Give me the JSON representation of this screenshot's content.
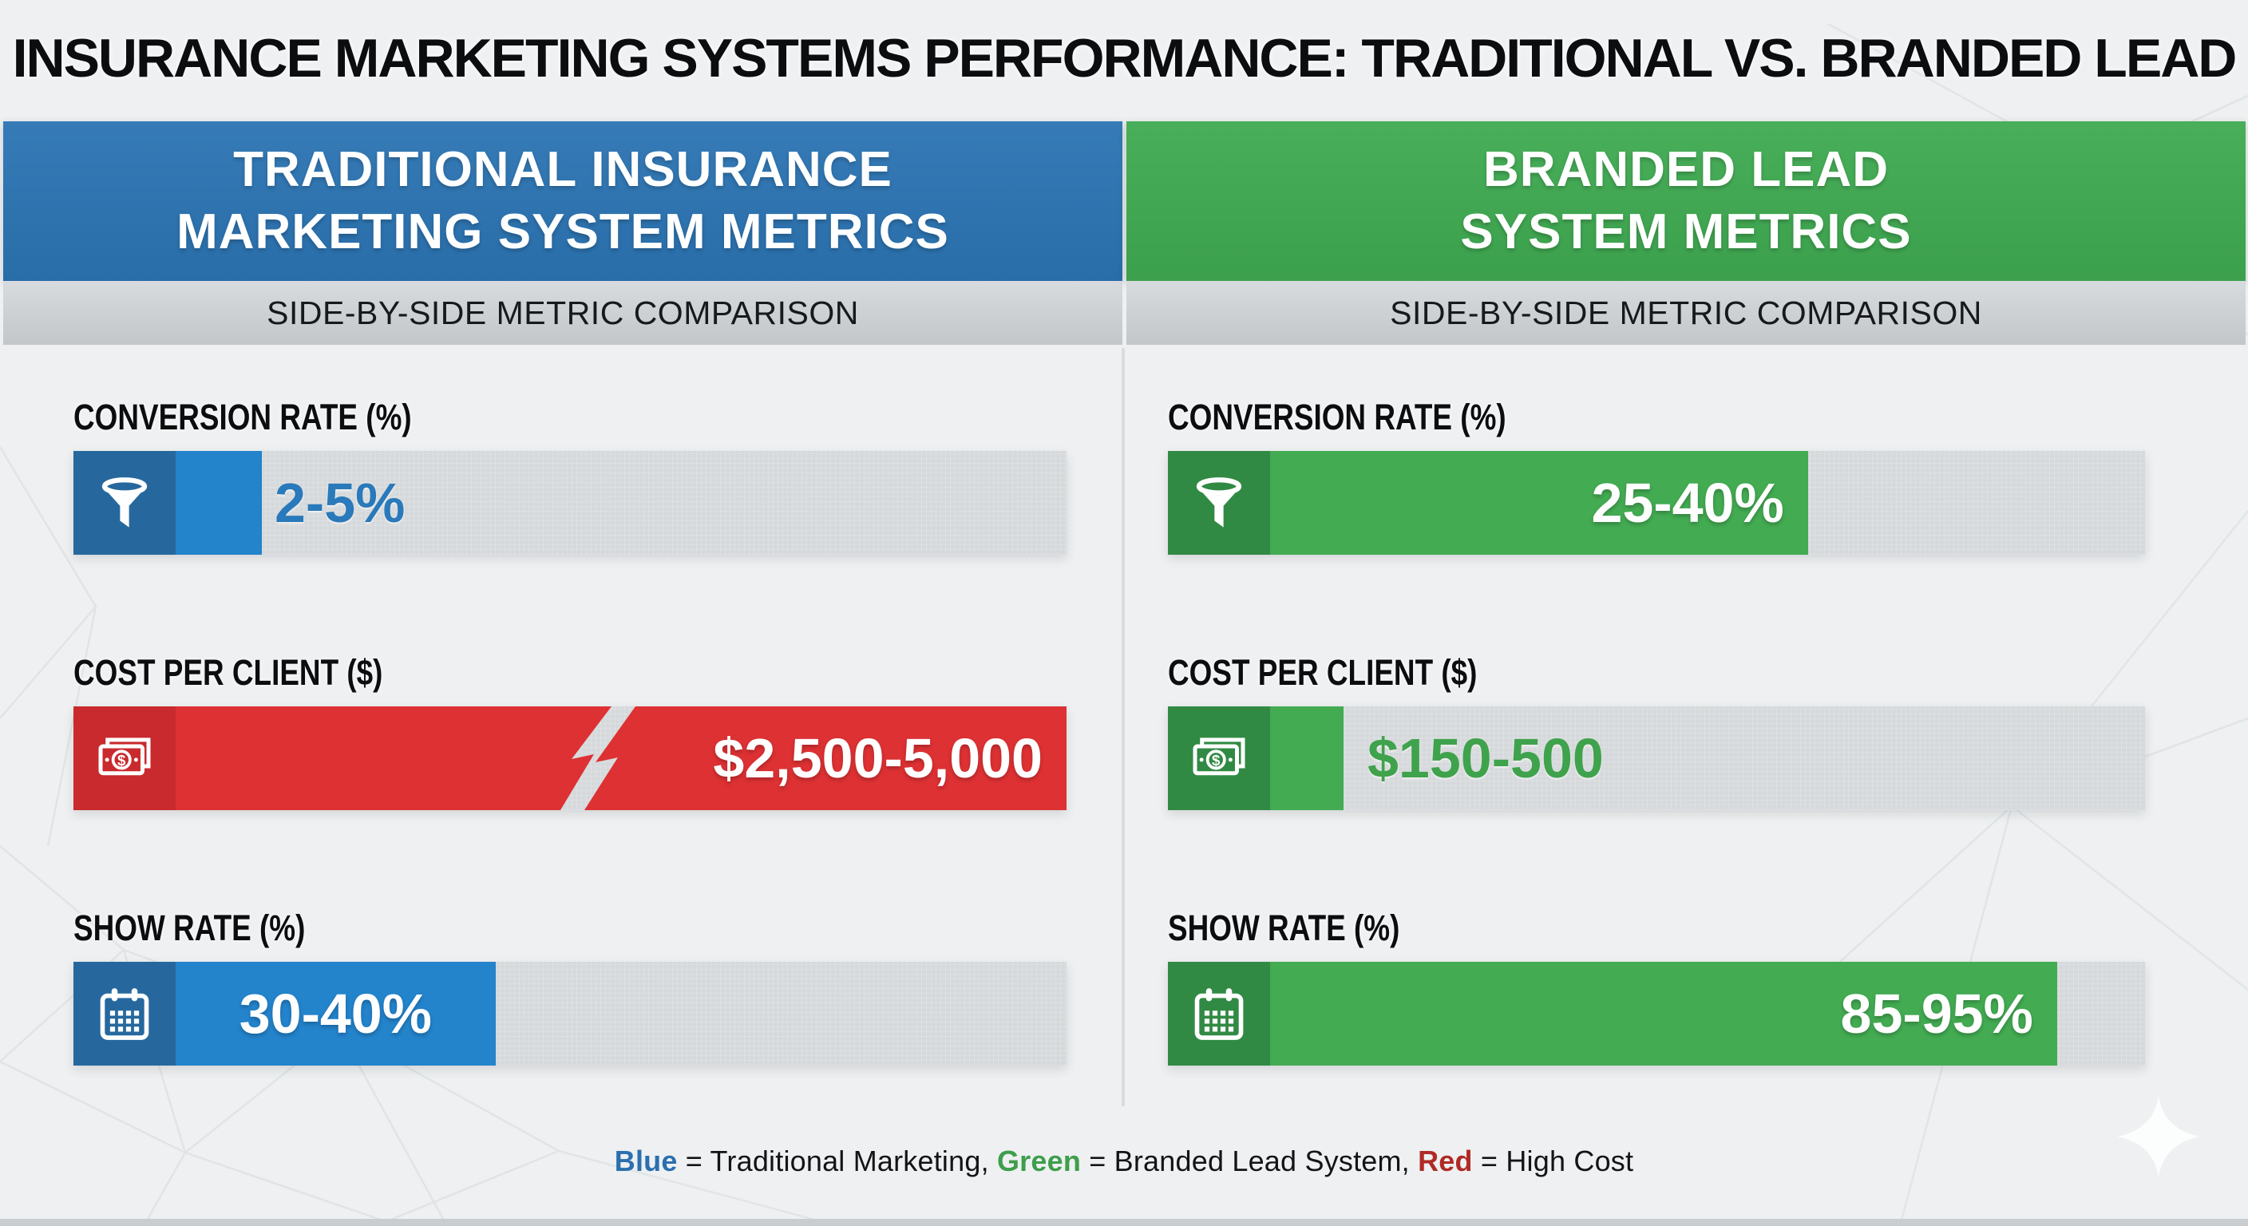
{
  "title": "INSURANCE MARKETING SYSTEMS PERFORMANCE: TRADITIONAL VS. BRANDED LEAD",
  "columns": [
    {
      "header_line1": "TRADITIONAL INSURANCE",
      "header_line2": "MARKETING SYSTEM METRICS",
      "subheader": "SIDE-BY-SIDE METRIC COMPARISON",
      "metrics": [
        {
          "label": "CONVERSION RATE (%)",
          "value": "2-5%",
          "icon": "funnel-icon",
          "fill_pct": 19
        },
        {
          "label": "COST PER CLIENT ($)",
          "value": "$2,500-5,000",
          "icon": "money-icon",
          "fill_pct": 100
        },
        {
          "label": "SHOW RATE (%)",
          "value": "30-40%",
          "icon": "calendar-icon",
          "fill_pct": 42.5
        }
      ]
    },
    {
      "header_line1": "BRANDED LEAD",
      "header_line2": "SYSTEM METRICS",
      "subheader": "SIDE-BY-SIDE METRIC COMPARISON",
      "metrics": [
        {
          "label": "CONVERSION RATE (%)",
          "value": "25-40%",
          "icon": "funnel-icon",
          "fill_pct": 65.5
        },
        {
          "label": "COST PER CLIENT ($)",
          "value": "$150-500",
          "icon": "money-icon",
          "fill_pct": 18
        },
        {
          "label": "SHOW RATE (%)",
          "value": "85-95%",
          "icon": "calendar-icon",
          "fill_pct": 91
        }
      ]
    }
  ],
  "legend": {
    "blue_term": "Blue",
    "blue_rest": " = Traditional Marketing, ",
    "green_term": "Green",
    "green_rest": " = Branded Lead System, ",
    "red_term": "Red",
    "red_rest": " = High Cost"
  },
  "icons": {
    "conversion": "funnel-icon",
    "cost": "money-icon",
    "show": "calendar-icon",
    "decoration": "sparkle-icon"
  },
  "colors": {
    "blue": "#2b74b3",
    "blue_dark": "#26689e",
    "blue_bright": "#2383cb",
    "green": "#3faa51",
    "green_dark": "#318a44",
    "green_bright": "#43ab52",
    "red": "#dd3133",
    "red_dark": "#c92a2d",
    "track": "#d6d9db",
    "value_blue": "#2a79ba",
    "value_green": "#3fa24c",
    "legend_blue": "#2a6fb0",
    "legend_green": "#3d9e4b",
    "legend_red": "#b02a25"
  },
  "chart_data": {
    "type": "bar",
    "title": "INSURANCE MARKETING SYSTEMS PERFORMANCE: TRADITIONAL VS. BRANDED LEAD",
    "categories": [
      "CONVERSION RATE (%)",
      "COST PER CLIENT ($)",
      "SHOW RATE (%)"
    ],
    "series": [
      {
        "name": "Traditional Insurance Marketing System",
        "color": "#2b74b3",
        "values": [
          "2-5%",
          "$2,500-5,000",
          "30-40%"
        ],
        "bar_fill_fractions": [
          0.19,
          1.0,
          0.425
        ],
        "notes": "Cost per Client bar drawn in red with an off-scale break symbol (high cost)"
      },
      {
        "name": "Branded Lead System",
        "color": "#3faa51",
        "values": [
          "25-40%",
          "$150-500",
          "85-95%"
        ],
        "bar_fill_fractions": [
          0.655,
          0.18,
          0.91
        ]
      }
    ],
    "legend": "Blue = Traditional Marketing, Green = Branded Lead System, Red = High Cost",
    "legend_position": "bottom",
    "grid": false,
    "layout": "two side-by-side panels of horizontal range bars"
  }
}
